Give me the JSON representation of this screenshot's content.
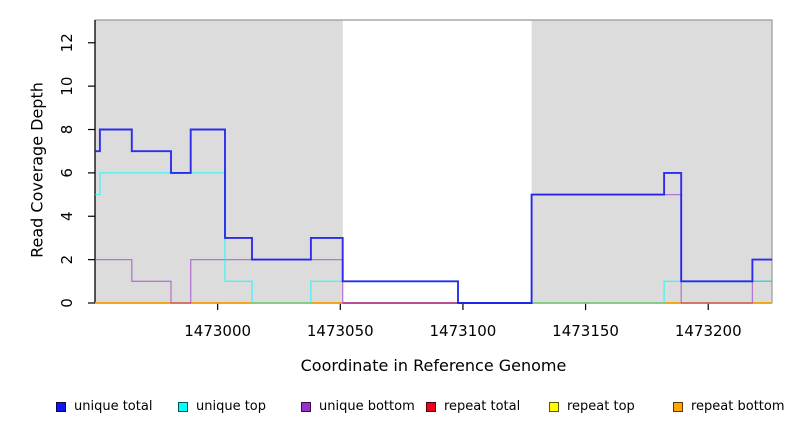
{
  "chart_data": {
    "type": "line",
    "subtype": "step",
    "title": "",
    "xlabel": "Coordinate in Reference Genome",
    "ylabel": "Read Coverage Depth",
    "xlim": [
      1472950,
      1473226
    ],
    "ylim": [
      0,
      13.05
    ],
    "x_ticks": [
      1473000,
      1473050,
      1473100,
      1473150,
      1473200
    ],
    "y_ticks": [
      0,
      2,
      4,
      6,
      8,
      10,
      12
    ],
    "grid": false,
    "legend_position": "bottom",
    "plot_background": "#ffffff",
    "shaded_band_color": "#dcdcdc",
    "shaded_regions": [
      [
        1472950,
        1473051
      ],
      [
        1473128,
        1473226
      ]
    ],
    "box_border_color": "#999999",
    "axis_color": "#000000",
    "series": [
      {
        "name": "unique total",
        "color": "#1414ee",
        "line_opacity": 0.88,
        "line_width": 1.9,
        "segments": [
          [
            [
              1472950,
              7
            ],
            [
              1472952,
              8
            ],
            [
              1472965,
              7
            ],
            [
              1472981,
              6
            ],
            [
              1472989,
              8
            ],
            [
              1473003,
              3
            ],
            [
              1473014,
              2
            ],
            [
              1473038,
              3
            ],
            [
              1473051,
              1
            ],
            [
              1473098,
              0
            ],
            [
              1473128,
              5
            ],
            [
              1473182,
              6
            ],
            [
              1473189,
              1
            ],
            [
              1473218,
              2
            ],
            [
              1473226,
              2
            ]
          ]
        ]
      },
      {
        "name": "unique top",
        "color": "#00ffff",
        "line_opacity": 0.7,
        "line_width": 1.3,
        "segments": [
          [
            [
              1472950,
              5
            ],
            [
              1472952,
              6
            ],
            [
              1473003,
              1
            ],
            [
              1473014,
              0
            ],
            [
              1473038,
              1
            ],
            [
              1473098,
              0
            ],
            [
              1473182,
              1
            ],
            [
              1473226,
              1
            ]
          ]
        ]
      },
      {
        "name": "unique bottom",
        "color": "#9932cc",
        "line_opacity": 0.6,
        "line_width": 1.3,
        "segments": [
          [
            [
              1472950,
              2
            ],
            [
              1472965,
              1
            ],
            [
              1472981,
              0
            ],
            [
              1472989,
              2
            ],
            [
              1473051,
              0
            ],
            [
              1473128,
              5
            ],
            [
              1473189,
              0
            ],
            [
              1473218,
              1
            ],
            [
              1473226,
              1
            ]
          ]
        ]
      },
      {
        "name": "repeat total",
        "color": "#ee0022",
        "line_opacity": 0.8,
        "line_width": 1.3,
        "segments": [
          [
            [
              1472950,
              0
            ],
            [
              1473226,
              0
            ]
          ]
        ]
      },
      {
        "name": "repeat top",
        "color": "#ffff00",
        "line_opacity": 1,
        "line_width": 1.3,
        "segments": [
          [
            [
              1472950,
              0
            ],
            [
              1473051,
              0
            ]
          ],
          [
            [
              1473128,
              0
            ],
            [
              1473226,
              0
            ]
          ]
        ]
      },
      {
        "name": "repeat bottom",
        "color": "#ffa500",
        "line_opacity": 1,
        "line_width": 1.6,
        "segments": [
          [
            [
              1472950,
              0
            ],
            [
              1473051,
              0
            ]
          ],
          [
            [
              1473128,
              0
            ],
            [
              1473226,
              0
            ]
          ]
        ]
      }
    ],
    "draw_order": [
      3,
      4,
      5,
      2,
      1,
      0
    ]
  }
}
